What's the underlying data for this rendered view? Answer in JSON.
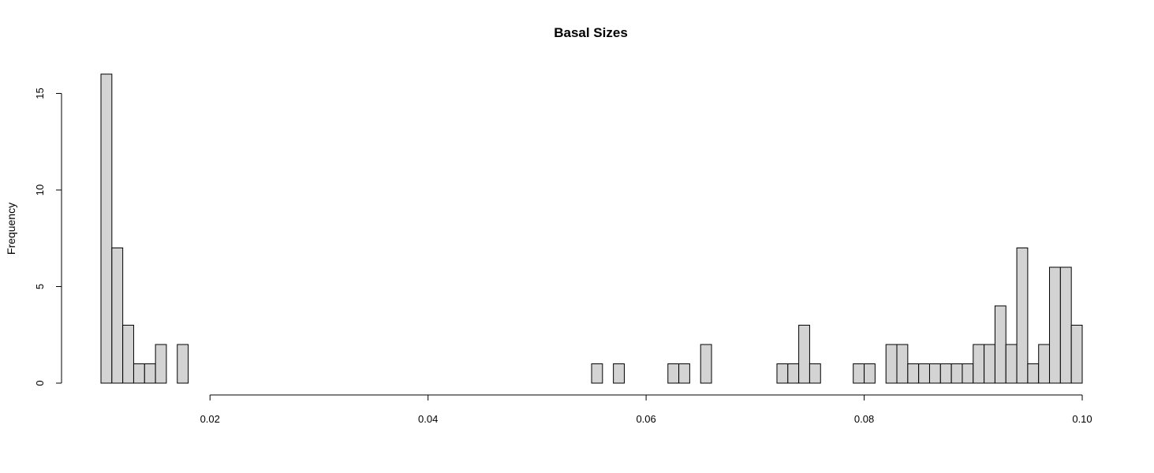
{
  "chart_data": {
    "type": "bar",
    "title": "Basal Sizes",
    "xlabel": "",
    "ylabel": "Frequency",
    "xlim": [
      0.01,
      0.1
    ],
    "ylim": [
      0,
      16
    ],
    "bin_width": 0.001,
    "x_ticks": [
      0.02,
      0.04,
      0.06,
      0.08,
      0.1
    ],
    "x_tick_labels": [
      "0.02",
      "0.04",
      "0.06",
      "0.08",
      "0.10"
    ],
    "y_ticks": [
      0,
      5,
      10,
      15
    ],
    "y_tick_labels": [
      "0",
      "5",
      "10",
      "15"
    ],
    "grid": false,
    "colors": {
      "bar_fill": "#d3d3d3",
      "bar_stroke": "#000000"
    },
    "bin_starts": [
      0.01,
      0.011,
      0.012,
      0.013,
      0.014,
      0.015,
      0.016,
      0.017,
      0.018,
      0.019,
      0.02,
      0.021,
      0.022,
      0.023,
      0.024,
      0.025,
      0.026,
      0.027,
      0.028,
      0.029,
      0.03,
      0.031,
      0.032,
      0.033,
      0.034,
      0.035,
      0.036,
      0.037,
      0.038,
      0.039,
      0.04,
      0.041,
      0.042,
      0.043,
      0.044,
      0.045,
      0.046,
      0.047,
      0.048,
      0.049,
      0.05,
      0.051,
      0.052,
      0.053,
      0.054,
      0.055,
      0.056,
      0.057,
      0.058,
      0.059,
      0.06,
      0.061,
      0.062,
      0.063,
      0.064,
      0.065,
      0.066,
      0.067,
      0.068,
      0.069,
      0.07,
      0.071,
      0.072,
      0.073,
      0.074,
      0.075,
      0.076,
      0.077,
      0.078,
      0.079,
      0.08,
      0.081,
      0.082,
      0.083,
      0.084,
      0.085,
      0.086,
      0.087,
      0.088,
      0.089,
      0.09,
      0.091,
      0.092,
      0.093,
      0.094,
      0.095,
      0.096,
      0.097,
      0.098,
      0.099
    ],
    "values": [
      16,
      7,
      3,
      1,
      1,
      2,
      0,
      2,
      0,
      0,
      0,
      0,
      0,
      0,
      0,
      0,
      0,
      0,
      0,
      0,
      0,
      0,
      0,
      0,
      0,
      0,
      0,
      0,
      0,
      0,
      0,
      0,
      0,
      0,
      0,
      0,
      0,
      0,
      0,
      0,
      0,
      0,
      0,
      0,
      0,
      1,
      0,
      1,
      0,
      0,
      0,
      0,
      1,
      1,
      0,
      2,
      0,
      0,
      0,
      0,
      0,
      0,
      1,
      1,
      3,
      1,
      0,
      0,
      0,
      1,
      1,
      0,
      2,
      2,
      1,
      1,
      1,
      1,
      1,
      1,
      2,
      2,
      4,
      2,
      7,
      1,
      2,
      6,
      6,
      3
    ]
  }
}
